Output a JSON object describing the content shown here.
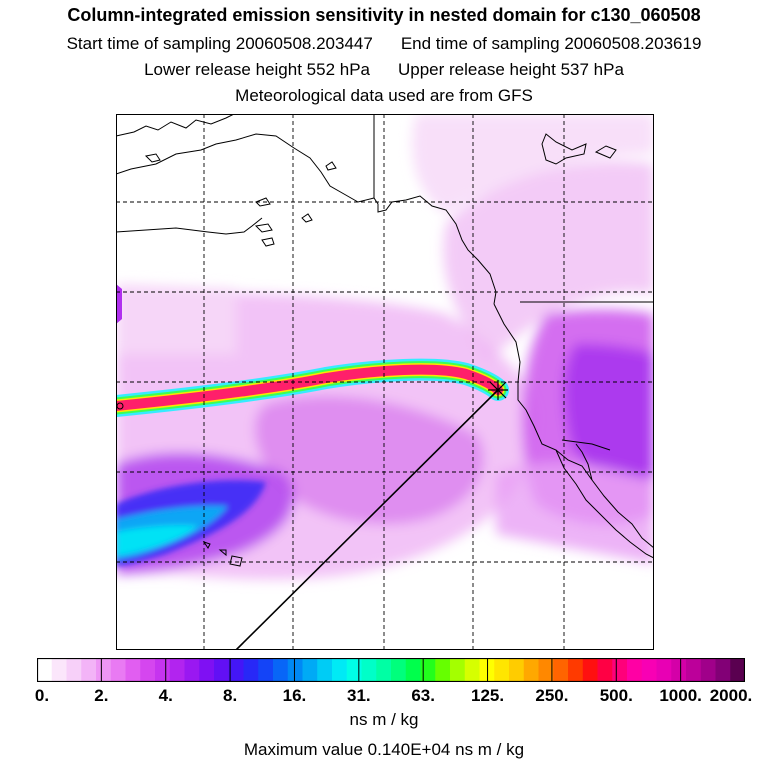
{
  "chart_data": {
    "type": "heatmap",
    "title": "Column-integrated emission sensitivity in nested domain for c130_060508",
    "subtitle_lines": [
      {
        "start_label": "Start time of sampling",
        "start_value": "20060508.203447",
        "end_label": "End time of sampling",
        "end_value": "20060508.203619"
      },
      {
        "lower_label": "Lower release height",
        "lower_value": "552 hPa",
        "upper_label": "Upper release height",
        "upper_value": "537 hPa"
      }
    ],
    "met_note": "Meteorological data used are from GFS",
    "colorbar": {
      "units": "ns m / kg",
      "tick_labels": [
        "0.",
        "2.",
        "4.",
        "8.",
        "16.",
        "31.",
        "63.",
        "125.",
        "250.",
        "500.",
        "1000.",
        "2000."
      ],
      "colors": [
        "#ffffff",
        "#fbe6fb",
        "#f7d0f9",
        "#f3b4f7",
        "#ee96f5",
        "#e97af3",
        "#e15ef1",
        "#d546ef",
        "#c634ef",
        "#b224ef",
        "#9a18f1",
        "#7f10f3",
        "#6210f5",
        "#4416f7",
        "#2828f7",
        "#1444f7",
        "#0866f7",
        "#0088f5",
        "#00aaf5",
        "#00ccf5",
        "#00eaf5",
        "#00ffe6",
        "#00ffc8",
        "#00ffa4",
        "#00ff7c",
        "#00ff4c",
        "#22ff1c",
        "#66ff00",
        "#a4ff00",
        "#d6ff00",
        "#ffff00",
        "#ffe600",
        "#ffcc00",
        "#ffa800",
        "#ff8800",
        "#ff6400",
        "#ff3a00",
        "#ff1010",
        "#ff0044",
        "#ff007a",
        "#ff00a4",
        "#f800b4",
        "#e800b4",
        "#d400a8",
        "#bc009a",
        "#a0008a",
        "#820076",
        "#5a0050"
      ]
    },
    "max_value": {
      "label": "Maximum value",
      "value": "0.140E+04",
      "units": "ns m / kg"
    },
    "map": {
      "projection": "lat-lon",
      "receptor_marker": "star",
      "grid_lines": true,
      "features": [
        "coastline",
        "trajectory band",
        "emission sensitivity field"
      ]
    }
  }
}
